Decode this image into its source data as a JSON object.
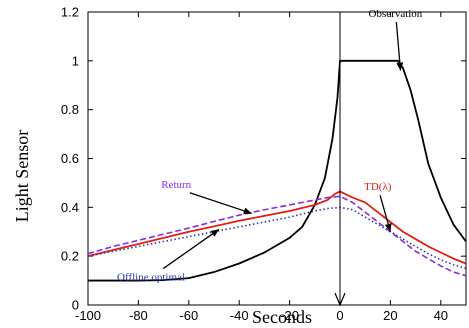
{
  "chart_data": {
    "type": "line",
    "xlabel": "Seconds",
    "ylabel": "Light Sensor",
    "xlim": [
      -100,
      50
    ],
    "ylim": [
      0,
      1.2
    ],
    "x_ticks": [
      -100,
      -80,
      -60,
      -40,
      -20,
      0,
      20,
      40
    ],
    "y_ticks": [
      0,
      0.2,
      0.4,
      0.6,
      0.8,
      1,
      1.2
    ],
    "grid": false,
    "legend": "none",
    "series": [
      {
        "name": "Observation",
        "color": "#000000",
        "style": "solid",
        "x": [
          -100,
          -90,
          -80,
          -70,
          -60,
          -50,
          -40,
          -30,
          -20,
          -15,
          -10,
          -6,
          -3,
          -1,
          0,
          5,
          10,
          15,
          20,
          23,
          25,
          28,
          31,
          35,
          40,
          45,
          50
        ],
        "y": [
          0.1,
          0.1,
          0.1,
          0.102,
          0.11,
          0.135,
          0.17,
          0.215,
          0.275,
          0.32,
          0.41,
          0.52,
          0.68,
          0.85,
          1.0,
          1.0,
          1.0,
          1.0,
          1.0,
          1.0,
          0.97,
          0.88,
          0.76,
          0.58,
          0.44,
          0.33,
          0.26
        ]
      },
      {
        "name": "TD(λ)",
        "color": "#e02010",
        "style": "solid",
        "x": [
          -100,
          -90,
          -80,
          -70,
          -60,
          -50,
          -40,
          -30,
          -20,
          -10,
          -5,
          -2,
          0,
          5,
          10,
          15,
          20,
          25,
          30,
          35,
          40,
          45,
          50
        ],
        "y": [
          0.2,
          0.225,
          0.25,
          0.275,
          0.3,
          0.322,
          0.345,
          0.365,
          0.385,
          0.41,
          0.43,
          0.455,
          0.465,
          0.44,
          0.42,
          0.38,
          0.34,
          0.3,
          0.27,
          0.24,
          0.215,
          0.19,
          0.17
        ]
      },
      {
        "name": "Return",
        "color": "#8a2be2",
        "style": "dashed",
        "x": [
          -100,
          -90,
          -80,
          -70,
          -60,
          -50,
          -40,
          -30,
          -20,
          -10,
          -5,
          0,
          5,
          10,
          15,
          20,
          25,
          30,
          35,
          40,
          45,
          50
        ],
        "y": [
          0.21,
          0.24,
          0.265,
          0.29,
          0.315,
          0.342,
          0.368,
          0.39,
          0.41,
          0.43,
          0.44,
          0.445,
          0.42,
          0.38,
          0.34,
          0.3,
          0.26,
          0.22,
          0.19,
          0.16,
          0.135,
          0.12
        ]
      },
      {
        "name": "Offline optimal",
        "color": "#2a3aa8",
        "style": "dotted",
        "x": [
          -100,
          -90,
          -80,
          -70,
          -60,
          -50,
          -40,
          -30,
          -20,
          -10,
          -5,
          0,
          5,
          10,
          15,
          20,
          25,
          30,
          35,
          40,
          45,
          50
        ],
        "y": [
          0.2,
          0.22,
          0.24,
          0.26,
          0.28,
          0.3,
          0.32,
          0.34,
          0.36,
          0.385,
          0.395,
          0.4,
          0.39,
          0.36,
          0.33,
          0.3,
          0.27,
          0.24,
          0.21,
          0.185,
          0.165,
          0.15
        ]
      }
    ],
    "vertical_marker": {
      "x": 0,
      "color": "#000000"
    },
    "annotations": [
      {
        "text": "Observation",
        "color": "#000000",
        "target_x": 24,
        "target_y": 0.96,
        "text_x": 22,
        "text_y": 1.18
      },
      {
        "text": "TD(λ)",
        "color": "#e02010",
        "target_x": 20,
        "target_y": 0.3,
        "text_x": 15,
        "text_y": 0.47
      },
      {
        "text": "Return",
        "color": "#8a2be2",
        "target_x": -35,
        "target_y": 0.375,
        "text_x": -65,
        "text_y": 0.48
      },
      {
        "text": "Offline optimal",
        "color": "#2a3aa8",
        "target_x": -48,
        "target_y": 0.31,
        "text_x": -75,
        "text_y": 0.1
      }
    ]
  }
}
